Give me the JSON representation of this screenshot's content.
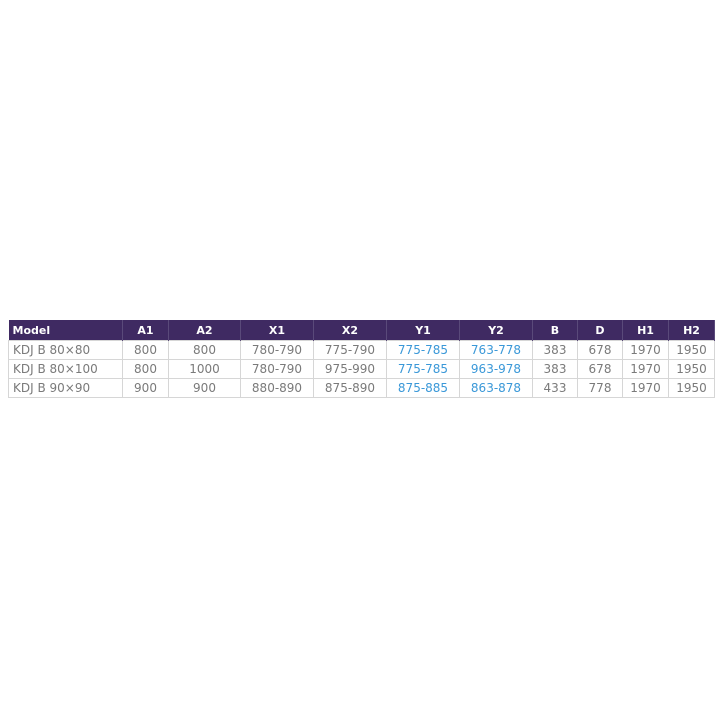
{
  "table": {
    "headers": [
      "Model",
      "A1",
      "A2",
      "X1",
      "X2",
      "Y1",
      "Y2",
      "B",
      "D",
      "H1",
      "H2"
    ],
    "rows": [
      [
        "KDJ B 80×80",
        "800",
        "800",
        "780-790",
        "775-790",
        "775-785",
        "763-778",
        "383",
        "678",
        "1970",
        "1950"
      ],
      [
        "KDJ B 80×100",
        "800",
        "1000",
        "780-790",
        "975-990",
        "775-785",
        "963-978",
        "383",
        "678",
        "1970",
        "1950"
      ],
      [
        "KDJ B 90×90",
        "900",
        "900",
        "880-890",
        "875-890",
        "875-885",
        "863-878",
        "433",
        "778",
        "1970",
        "1950"
      ]
    ]
  },
  "colors": {
    "header_bg": "#3f2a62",
    "highlight_text": "#3a98d8",
    "body_text": "#7a7a7a"
  }
}
